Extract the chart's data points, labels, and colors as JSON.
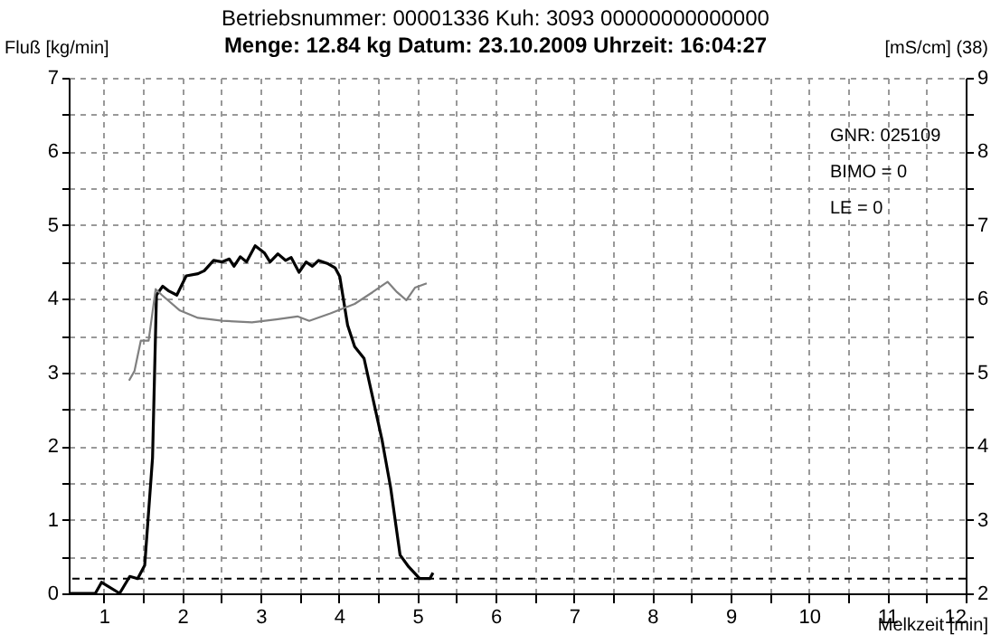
{
  "chart_data": {
    "type": "line",
    "title": "Betriebsnummer: 00001336     Kuh: 3093          00000000000000",
    "subtitle": "Menge: 12.84 kg    Datum: 23.10.2009    Uhrzeit: 16:04:27",
    "xlabel": "Melkzeit [min]",
    "ylabel": "Fluß [kg/min]",
    "y2label": "[mS/cm] (38)",
    "annotations": [
      "GNR: 025109",
      "BIMO = 0",
      "LE     = 0"
    ],
    "xlim": [
      0.55,
      12
    ],
    "xticks": [
      {
        "value": 1.5,
        "label": null
      },
      1,
      2,
      {
        "value": 2.5,
        "label": null
      },
      3,
      {
        "value": 3.5,
        "label": null
      },
      4,
      {
        "value": 4.5,
        "label": null
      },
      5,
      {
        "value": 5.5,
        "label": null
      },
      6,
      {
        "value": 6.5,
        "label": null
      },
      7,
      {
        "value": 7.5,
        "label": null
      },
      8,
      {
        "value": 8.5,
        "label": null
      },
      9,
      {
        "value": 9.5,
        "label": null
      },
      10,
      {
        "value": 10.5,
        "label": null
      },
      11,
      {
        "value": 11.5,
        "label": null
      },
      12
    ],
    "ylim": [
      0,
      7
    ],
    "yticks": [
      0,
      {
        "value": 0.5,
        "label": null
      },
      1,
      {
        "value": 1.5,
        "label": null
      },
      2,
      {
        "value": 2.5,
        "label": null
      },
      3,
      {
        "value": 3.5,
        "label": null
      },
      4,
      {
        "value": 4.5,
        "label": null
      },
      5,
      {
        "value": 5.5,
        "label": null
      },
      6,
      {
        "value": 6.5,
        "label": null
      },
      7
    ],
    "y2lim": [
      2,
      9
    ],
    "y2ticks": [
      2,
      {
        "value": 2.5,
        "label": null
      },
      3,
      {
        "value": 3.5,
        "label": null
      },
      4,
      {
        "value": 4.5,
        "label": null
      },
      5,
      {
        "value": 5.5,
        "label": null
      },
      6,
      {
        "value": 6.5,
        "label": null
      },
      7,
      {
        "value": 7.5,
        "label": null
      },
      8,
      {
        "value": 8.5,
        "label": null
      },
      9
    ],
    "grid": true,
    "marker": "none",
    "line_style": "solid",
    "ref_lines": [
      {
        "axis": "y",
        "value": 0.2,
        "color": "#000000",
        "line_style": "dashed"
      }
    ],
    "series": [
      {
        "color": "#000000",
        "x": [
          0.55,
          0.89,
          0.97,
          1.2,
          1.33,
          1.43,
          1.52,
          1.62,
          1.67,
          1.75,
          1.82,
          1.93,
          2.05,
          2.2,
          2.28,
          2.4,
          2.51,
          2.6,
          2.66,
          2.74,
          2.82,
          2.93,
          3.05,
          3.12,
          3.22,
          3.32,
          3.39,
          3.49,
          3.58,
          3.66,
          3.74,
          3.85,
          3.95,
          4.01,
          4.11,
          4.2,
          4.32,
          4.43,
          4.55,
          4.66,
          4.78,
          4.89,
          5.03,
          5.16,
          5.2
        ],
        "values": [
          0,
          0,
          0.15,
          0,
          0.23,
          0.2,
          0.38,
          1.84,
          4.05,
          4.17,
          4.11,
          4.05,
          4.31,
          4.34,
          4.38,
          4.52,
          4.5,
          4.54,
          4.44,
          4.57,
          4.5,
          4.72,
          4.62,
          4.5,
          4.61,
          4.52,
          4.56,
          4.36,
          4.5,
          4.44,
          4.52,
          4.48,
          4.42,
          4.3,
          3.64,
          3.35,
          3.19,
          2.66,
          2.08,
          1.43,
          0.52,
          0.36,
          0.2,
          0.2,
          0.28
        ]
      },
      {
        "color": "#808080",
        "axis": "y2",
        "x": [
          1.32,
          1.39,
          1.47,
          1.57,
          1.66,
          1.74,
          1.97,
          2.2,
          2.51,
          2.89,
          3.2,
          3.47,
          3.62,
          3.89,
          4.2,
          4.43,
          4.62,
          4.74,
          4.86,
          4.97,
          5.12
        ],
        "values": [
          4.89,
          5.02,
          5.43,
          5.43,
          6.13,
          6.05,
          5.84,
          5.74,
          5.7,
          5.68,
          5.72,
          5.76,
          5.7,
          5.8,
          5.93,
          6.09,
          6.23,
          6.09,
          5.98,
          6.15,
          6.21
        ]
      }
    ]
  }
}
